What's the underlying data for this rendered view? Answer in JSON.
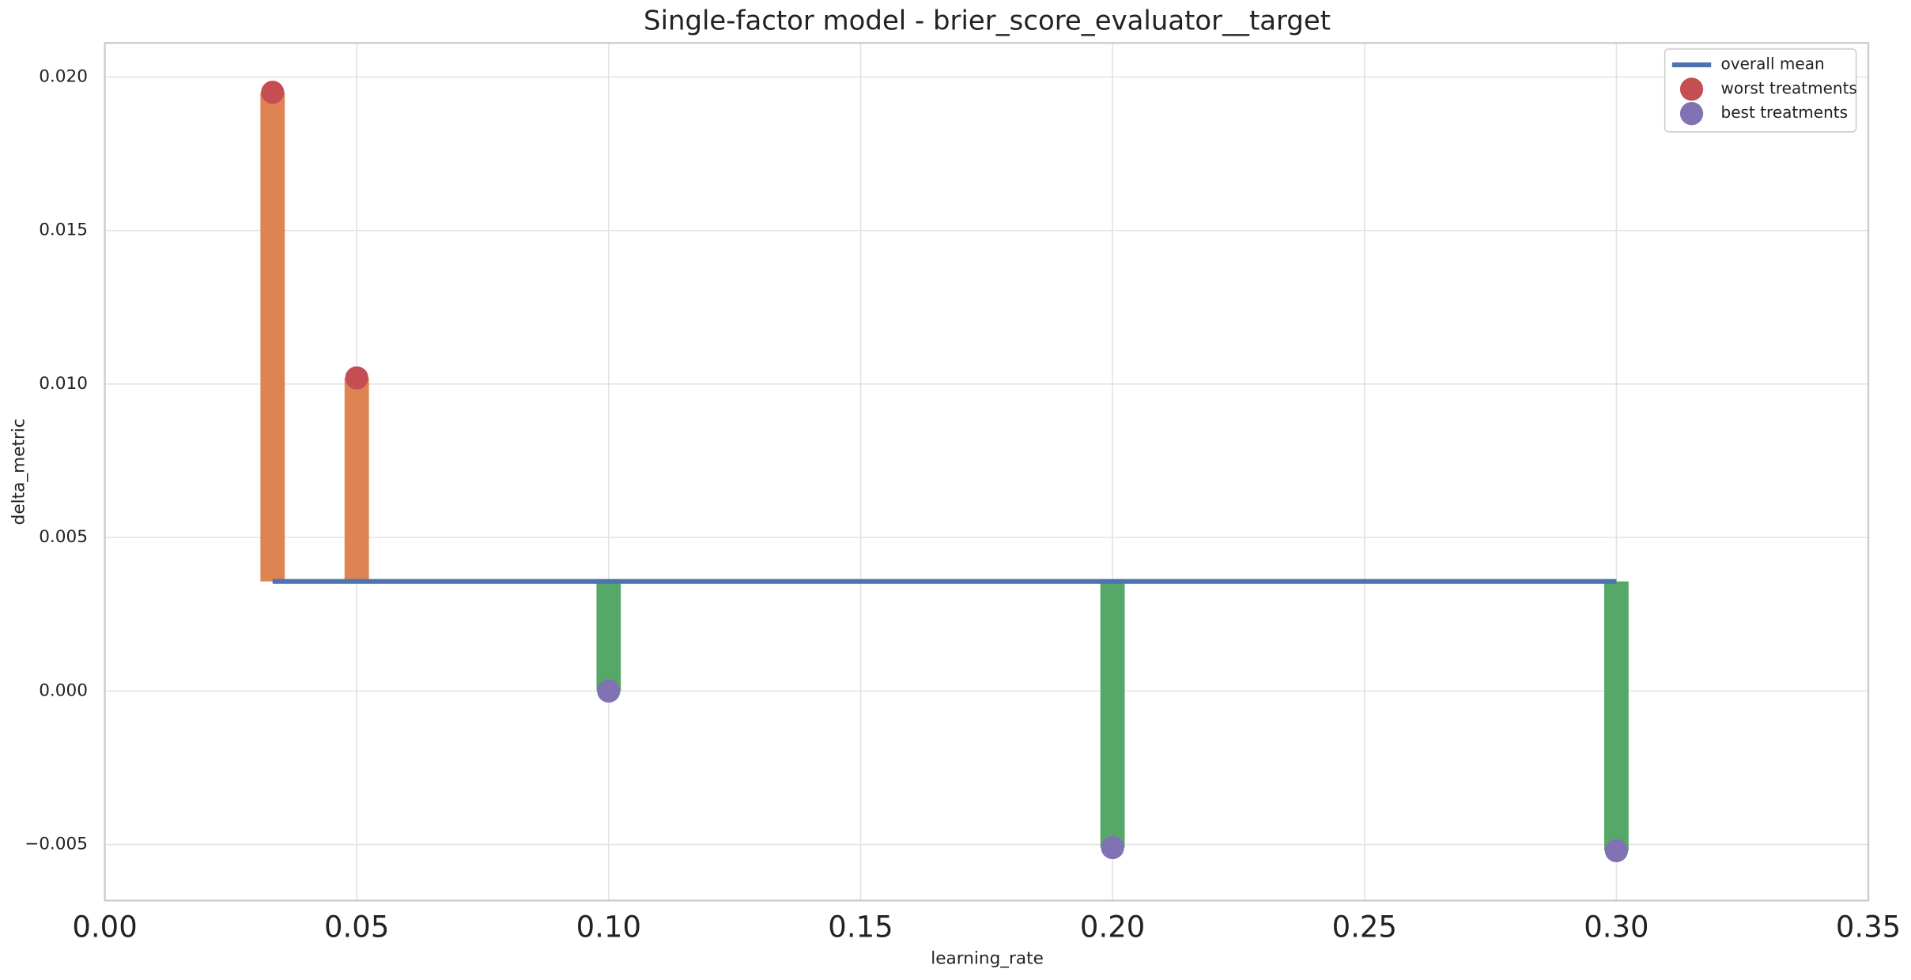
{
  "chart_data": {
    "type": "scatter",
    "title": "Single-factor model - brier_score_evaluator__target",
    "x_label": "learning_rate",
    "y_label": "delta_metric",
    "xlim": [
      0,
      0.35
    ],
    "ylim": [
      -0.006825,
      0.02111
    ],
    "xticks": [
      {
        "value": 0,
        "label": "0.00"
      },
      {
        "value": 0.05,
        "label": "0.05"
      },
      {
        "value": 0.1,
        "label": "0.10"
      },
      {
        "value": 0.15,
        "label": "0.15"
      },
      {
        "value": 0.2,
        "label": "0.20"
      },
      {
        "value": 0.25,
        "label": "0.25"
      },
      {
        "value": 0.3,
        "label": "0.30"
      },
      {
        "value": 0.35,
        "label": "0.35"
      }
    ],
    "yticks": [
      {
        "value": -0.005,
        "label": "−0.005"
      },
      {
        "value": 0,
        "label": "0.000"
      },
      {
        "value": 0.005,
        "label": "0.005"
      },
      {
        "value": 0.01,
        "label": "0.010"
      },
      {
        "value": 0.015,
        "label": "0.015"
      },
      {
        "value": 0.02,
        "label": "0.020"
      }
    ],
    "grid": true,
    "legend": "upper right",
    "series": [
      {
        "name": "overall mean",
        "kind": "line",
        "color": "#4c72b0",
        "x": [
          0.0333,
          0.3
        ],
        "values": [
          0.00357,
          0.00357
        ]
      },
      {
        "name": "worst treatments",
        "kind": "points",
        "color": "#c44e52",
        "bar_color": "#dd8452",
        "x": [
          0.0333,
          0.05
        ],
        "values": [
          0.0195,
          0.0102
        ]
      },
      {
        "name": "best treatments",
        "kind": "points",
        "color": "#8172b3",
        "bar_color": "#55a868",
        "x": [
          0.1,
          0.2,
          0.3
        ],
        "values": [
          0.0,
          -0.0051,
          -0.0052
        ]
      }
    ]
  }
}
